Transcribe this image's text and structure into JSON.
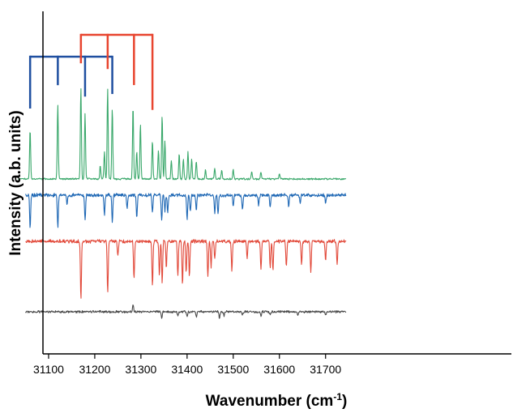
{
  "chart_data": {
    "type": "line",
    "xlabel": "Wavenumber (cm",
    "xlabel_sup": "-1",
    "xlabel_suffix": ")",
    "ylabel": "Intensity (a.b. units)",
    "xlim": [
      31030,
      31745
    ],
    "x_ticks": [
      31100,
      31200,
      31300,
      31400,
      31500,
      31600,
      31700
    ],
    "x_tick_labels": [
      "31100",
      "31200",
      "31300",
      "31400",
      "31500",
      "31600",
      "31700"
    ],
    "y_ticks_shown": false,
    "grid": false,
    "legend": "none",
    "colors": {
      "green": "#3aa86b",
      "blue": "#1f68b5",
      "red": "#e24a3b",
      "gray": "#4a4a4a",
      "blue_comb": "#1f4fa0",
      "red_comb": "#e8452f"
    },
    "series": [
      {
        "color": "green",
        "direction": "up",
        "x_start": 31035,
        "x_end": 31745,
        "peaks": [
          [
            31060,
            0.55
          ],
          [
            31120,
            0.82
          ],
          [
            31170,
            1.0
          ],
          [
            31179,
            0.72
          ],
          [
            31212,
            0.15
          ],
          [
            31221,
            0.3
          ],
          [
            31228,
            1.0
          ],
          [
            31238,
            0.78
          ],
          [
            31283,
            0.8
          ],
          [
            31291,
            0.3
          ],
          [
            31299,
            0.6
          ],
          [
            31325,
            0.42
          ],
          [
            31338,
            0.32
          ],
          [
            31346,
            0.7
          ],
          [
            31352,
            0.42
          ],
          [
            31366,
            0.2
          ],
          [
            31383,
            0.28
          ],
          [
            31392,
            0.22
          ],
          [
            31402,
            0.3
          ],
          [
            31410,
            0.22
          ],
          [
            31420,
            0.2
          ],
          [
            31440,
            0.1
          ],
          [
            31460,
            0.12
          ],
          [
            31475,
            0.1
          ],
          [
            31500,
            0.1
          ],
          [
            31540,
            0.08
          ],
          [
            31560,
            0.07
          ],
          [
            31600,
            0.06
          ]
        ]
      },
      {
        "color": "blue",
        "direction": "down",
        "x_start": 31050,
        "x_end": 31745,
        "peaks": [
          [
            31060,
            1.0
          ],
          [
            31120,
            1.0
          ],
          [
            31140,
            0.3
          ],
          [
            31179,
            0.8
          ],
          [
            31221,
            0.6
          ],
          [
            31238,
            0.85
          ],
          [
            31270,
            0.4
          ],
          [
            31291,
            0.7
          ],
          [
            31325,
            0.55
          ],
          [
            31345,
            0.8
          ],
          [
            31352,
            0.5
          ],
          [
            31358,
            0.55
          ],
          [
            31400,
            0.75
          ],
          [
            31407,
            0.5
          ],
          [
            31420,
            0.45
          ],
          [
            31460,
            0.55
          ],
          [
            31467,
            0.6
          ],
          [
            31500,
            0.35
          ],
          [
            31520,
            0.45
          ],
          [
            31555,
            0.3
          ],
          [
            31580,
            0.35
          ],
          [
            31620,
            0.35
          ],
          [
            31645,
            0.25
          ],
          [
            31700,
            0.25
          ]
        ]
      },
      {
        "color": "red",
        "direction": "down",
        "x_start": 31050,
        "x_end": 31745,
        "peaks": [
          [
            31170,
            1.0
          ],
          [
            31228,
            0.9
          ],
          [
            31250,
            0.25
          ],
          [
            31285,
            0.65
          ],
          [
            31325,
            0.78
          ],
          [
            31340,
            0.6
          ],
          [
            31346,
            0.7
          ],
          [
            31355,
            0.45
          ],
          [
            31380,
            0.6
          ],
          [
            31390,
            0.75
          ],
          [
            31398,
            0.55
          ],
          [
            31405,
            0.6
          ],
          [
            31445,
            0.6
          ],
          [
            31452,
            0.45
          ],
          [
            31460,
            0.3
          ],
          [
            31497,
            0.5
          ],
          [
            31530,
            0.3
          ],
          [
            31560,
            0.5
          ],
          [
            31580,
            0.45
          ],
          [
            31586,
            0.5
          ],
          [
            31615,
            0.45
          ],
          [
            31648,
            0.4
          ],
          [
            31668,
            0.55
          ],
          [
            31700,
            0.35
          ],
          [
            31725,
            0.4
          ]
        ]
      },
      {
        "color": "gray",
        "direction": "down",
        "x_start": 31050,
        "x_end": 31745,
        "peaks": [
          [
            31283,
            -0.6
          ],
          [
            31345,
            0.5
          ],
          [
            31380,
            0.4
          ],
          [
            31400,
            0.45
          ],
          [
            31420,
            0.4
          ],
          [
            31470,
            0.55
          ],
          [
            31480,
            0.4
          ],
          [
            31520,
            0.35
          ],
          [
            31560,
            0.35
          ],
          [
            31580,
            0.3
          ],
          [
            31640,
            0.3
          ],
          [
            31700,
            0.3
          ]
        ]
      }
    ],
    "combs": [
      {
        "color": "blue_comb",
        "level": "upper-left",
        "x": [
          31060,
          31120,
          31179,
          31238
        ],
        "tooth_lengths": [
          1.0,
          0.55,
          0.77,
          0.72
        ]
      },
      {
        "color": "red_comb",
        "level": "upper-right",
        "x": [
          31170,
          31228,
          31285,
          31325
        ],
        "tooth_lengths": [
          0.55,
          0.66,
          0.97,
          1.45
        ]
      }
    ]
  }
}
